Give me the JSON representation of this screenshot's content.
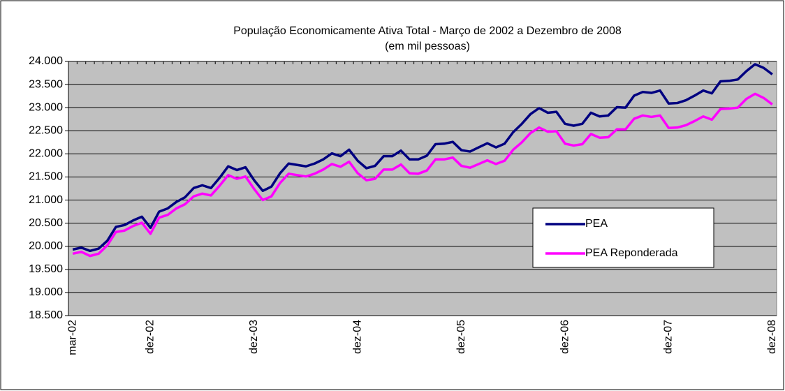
{
  "chart_data": {
    "type": "line",
    "title": "População Economicamente Ativa Total  - Março de 2002 a Dezembro de 2008",
    "subtitle": "(em mil pessoas)",
    "categories": [
      "mar-02",
      null,
      null,
      null,
      null,
      null,
      null,
      null,
      null,
      "dez-02",
      null,
      null,
      null,
      null,
      null,
      null,
      null,
      null,
      null,
      null,
      null,
      "dez-03",
      null,
      null,
      null,
      null,
      null,
      null,
      null,
      null,
      null,
      null,
      null,
      "dez-04",
      null,
      null,
      null,
      null,
      null,
      null,
      null,
      null,
      null,
      null,
      null,
      "dez-05",
      null,
      null,
      null,
      null,
      null,
      null,
      null,
      null,
      null,
      null,
      null,
      "dez-06",
      null,
      null,
      null,
      null,
      null,
      null,
      null,
      null,
      null,
      null,
      null,
      "dez-07",
      null,
      null,
      null,
      null,
      null,
      null,
      null,
      null,
      null,
      null,
      null,
      "dez-08"
    ],
    "series": [
      {
        "name": "PEA",
        "color": "#000080",
        "values": [
          19930,
          19970,
          19900,
          19950,
          20120,
          20420,
          20460,
          20560,
          20640,
          20400,
          20750,
          20820,
          20960,
          21060,
          21260,
          21320,
          21260,
          21480,
          21730,
          21650,
          21710,
          21430,
          21200,
          21290,
          21580,
          21790,
          21760,
          21730,
          21790,
          21880,
          22010,
          21950,
          22090,
          21850,
          21690,
          21740,
          21950,
          21950,
          22070,
          21880,
          21880,
          21960,
          22210,
          22220,
          22260,
          22080,
          22050,
          22140,
          22230,
          22140,
          22220,
          22470,
          22650,
          22860,
          22990,
          22890,
          22910,
          22650,
          22610,
          22650,
          22890,
          22810,
          22830,
          23010,
          23000,
          23260,
          23340,
          23320,
          23370,
          23090,
          23100,
          23160,
          23260,
          23370,
          23310,
          23570,
          23580,
          23610,
          23790,
          23940,
          23860,
          23720
        ]
      },
      {
        "name": "PEA Reponderada",
        "color": "#ff00ff",
        "values": [
          19840,
          19880,
          19790,
          19840,
          20020,
          20310,
          20340,
          20440,
          20510,
          20270,
          20620,
          20680,
          20820,
          20910,
          21080,
          21140,
          21100,
          21310,
          21540,
          21460,
          21510,
          21240,
          21000,
          21080,
          21370,
          21570,
          21540,
          21510,
          21570,
          21660,
          21780,
          21720,
          21830,
          21580,
          21430,
          21460,
          21660,
          21660,
          21770,
          21580,
          21570,
          21640,
          21880,
          21880,
          21920,
          21740,
          21700,
          21780,
          21860,
          21780,
          21850,
          22090,
          22250,
          22450,
          22570,
          22480,
          22490,
          22220,
          22180,
          22210,
          22430,
          22350,
          22360,
          22530,
          22530,
          22760,
          22830,
          22800,
          22830,
          22560,
          22570,
          22620,
          22710,
          22810,
          22740,
          22970,
          22980,
          23000,
          23190,
          23300,
          23210,
          23070
        ]
      }
    ],
    "ylim": [
      18500,
      24000
    ],
    "yticks": [
      {
        "value": 18500,
        "label": "18.500"
      },
      {
        "value": 19000,
        "label": "19.000"
      },
      {
        "value": 19500,
        "label": "19.500"
      },
      {
        "value": 20000,
        "label": "20.000"
      },
      {
        "value": 20500,
        "label": "20.500"
      },
      {
        "value": 21000,
        "label": "21.000"
      },
      {
        "value": 21500,
        "label": "21.500"
      },
      {
        "value": 22000,
        "label": "22.000"
      },
      {
        "value": 22500,
        "label": "22.500"
      },
      {
        "value": 23000,
        "label": "23.000"
      },
      {
        "value": 23500,
        "label": "23.500"
      },
      {
        "value": 24000,
        "label": "24.000"
      }
    ],
    "grid": true,
    "plot_background": "#c0c0c0",
    "legend_position": "right"
  }
}
